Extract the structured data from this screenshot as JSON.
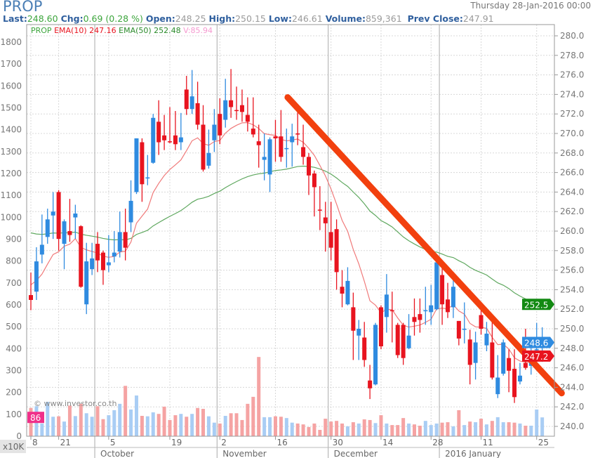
{
  "header": {
    "symbol": "PROP",
    "datetime": "Thursday 28-Jan-2016 00:00",
    "last_label": "Last:",
    "last": "248.60",
    "chg_label": "Chg:",
    "chg": "0.69 (0.28 %)",
    "open_label": "Open:",
    "open": "248.25",
    "high_label": "High:",
    "high": "250.15",
    "low_label": "Low:",
    "low": "246.61",
    "volume_label": "Volume:",
    "volume": "859,361",
    "prev_close_label": "Prev Close:",
    "prev_close": "247.91"
  },
  "legend": {
    "symbol": "PROP",
    "ema10": "EMA(10) 247.16",
    "ema50": "EMA(50) 252.48",
    "volume": "V:85.94"
  },
  "watermark": "© www.investor.co.th",
  "volume_unit": "x10K",
  "colors": {
    "up": "#2f8be0",
    "down": "#e8141f",
    "vol_up": "#a9cdf4",
    "vol_down": "#f5a3a3",
    "ema10": "#f07a7a",
    "ema50": "#5fa85f",
    "trendline": "#f2400e",
    "tag_pink": "#f0308a"
  },
  "chart_data": {
    "type": "candlestick",
    "price_axis": {
      "side": "right",
      "range": [
        240,
        280
      ],
      "step": 2,
      "ticks": [
        "240.0",
        "242.0",
        "244.0",
        "246.0",
        "248.0",
        "250.0",
        "252.0",
        "254.0",
        "256.0",
        "258.0",
        "260.0",
        "262.0",
        "264.0",
        "266.0",
        "268.0",
        "270.0",
        "272.0",
        "274.0",
        "276.0",
        "278.0",
        "280.0"
      ]
    },
    "volume_axis": {
      "side": "left",
      "range": [
        0,
        1800
      ],
      "ticks": [
        "0",
        "100",
        "200",
        "300",
        "400",
        "500",
        "600",
        "700",
        "800",
        "900",
        "1000",
        "1100",
        "1200",
        "1300",
        "1400",
        "1500",
        "1600",
        "1700",
        "1800"
      ]
    },
    "x_ticks": [
      {
        "bar": 0,
        "label": "8"
      },
      {
        "bar": 5,
        "label": "21"
      },
      {
        "bar": 14,
        "label": "5"
      },
      {
        "bar": 25,
        "label": "19"
      },
      {
        "bar": 34,
        "label": "2"
      },
      {
        "bar": 44,
        "label": "16"
      },
      {
        "bar": 54,
        "label": "30"
      },
      {
        "bar": 63,
        "label": "14"
      },
      {
        "bar": 72,
        "label": "28"
      },
      {
        "bar": 81,
        "label": "11"
      },
      {
        "bar": 91,
        "label": "25"
      }
    ],
    "months": [
      {
        "bar": 12,
        "label": "October"
      },
      {
        "bar": 34,
        "label": "November"
      },
      {
        "bar": 54,
        "label": "December"
      },
      {
        "bar": 74,
        "label": "2016 January"
      }
    ],
    "ohlc": [
      [
        253.45,
        255.75,
        251.9,
        252.95
      ],
      [
        253.8,
        258.35,
        252.95,
        256.9
      ],
      [
        257.6,
        261.7,
        256.7,
        258.6
      ],
      [
        259.4,
        262.3,
        258.7,
        261.2
      ],
      [
        261.6,
        264.0,
        259.2,
        262.0
      ],
      [
        264.0,
        264.2,
        258.0,
        259.2
      ],
      [
        258.7,
        261.2,
        256.1,
        261.0
      ],
      [
        260.0,
        263.3,
        258.9,
        259.6
      ],
      [
        261.4,
        262.7,
        259.2,
        261.8
      ],
      [
        260.5,
        260.6,
        254.2,
        254.3
      ],
      [
        252.5,
        258.8,
        251.5,
        256.9
      ],
      [
        256.1,
        258.8,
        255.5,
        257.2
      ],
      [
        258.7,
        259.9,
        255.8,
        257.0
      ],
      [
        257.8,
        258.0,
        254.5,
        256.0
      ],
      [
        256.5,
        259.6,
        255.8,
        256.8
      ],
      [
        257.4,
        260.0,
        256.8,
        257.8
      ],
      [
        257.9,
        262.0,
        257.3,
        259.9
      ],
      [
        259.9,
        262.3,
        257.0,
        258.3
      ],
      [
        260.9,
        265.2,
        259.9,
        263.1
      ],
      [
        264.0,
        269.5,
        263.8,
        269.5
      ],
      [
        269.1,
        269.5,
        263.0,
        264.8
      ],
      [
        265.4,
        267.8,
        264.7,
        265.5
      ],
      [
        267.0,
        272.0,
        266.9,
        271.6
      ],
      [
        271.2,
        273.4,
        267.8,
        269.1
      ],
      [
        269.8,
        271.9,
        268.3,
        269.3
      ],
      [
        269.2,
        272.7,
        269.0,
        269.1
      ],
      [
        269.8,
        272.3,
        268.3,
        268.9
      ],
      [
        269.1,
        272.1,
        268.3,
        269.6
      ],
      [
        274.5,
        275.9,
        271.9,
        272.5
      ],
      [
        272.5,
        276.5,
        272.0,
        273.8
      ],
      [
        273.1,
        275.3,
        270.4,
        270.9
      ],
      [
        270.9,
        272.9,
        266.1,
        266.3
      ],
      [
        266.7,
        270.4,
        266.4,
        268.0
      ],
      [
        269.3,
        272.5,
        268.1,
        270.9
      ],
      [
        272.0,
        273.6,
        268.9,
        269.8
      ],
      [
        271.4,
        275.6,
        270.6,
        273.4
      ],
      [
        273.4,
        276.6,
        271.6,
        272.7
      ],
      [
        272.4,
        274.8,
        271.4,
        272.3
      ],
      [
        272.9,
        274.5,
        271.2,
        272.2
      ],
      [
        271.9,
        273.7,
        270.2,
        271.2
      ],
      [
        270.5,
        273.7,
        269.6,
        269.9
      ],
      [
        269.2,
        270.9,
        266.5,
        268.8
      ],
      [
        267.3,
        270.0,
        265.2,
        267.6
      ],
      [
        265.8,
        269.6,
        264.0,
        269.4
      ],
      [
        269.7,
        271.4,
        267.1,
        269.5
      ],
      [
        269.7,
        272.4,
        267.1,
        267.6
      ],
      [
        268.4,
        270.5,
        266.5,
        268.5
      ],
      [
        269.1,
        271.0,
        266.6,
        269.7
      ],
      [
        270.0,
        273.0,
        268.8,
        269.9
      ],
      [
        268.6,
        270.9,
        266.8,
        267.6
      ],
      [
        267.6,
        268.0,
        263.7,
        265.7
      ],
      [
        265.9,
        266.2,
        261.5,
        264.5
      ],
      [
        262.2,
        264.6,
        260.1,
        262.1
      ],
      [
        261.4,
        263.0,
        257.9,
        260.8
      ],
      [
        259.9,
        263.0,
        257.0,
        258.3
      ],
      [
        260.2,
        261.2,
        254.0,
        255.8
      ],
      [
        254.3,
        256.0,
        252.2,
        253.6
      ],
      [
        252.5,
        256.3,
        252.4,
        254.9
      ],
      [
        252.2,
        253.7,
        246.8,
        249.8
      ],
      [
        249.3,
        250.9,
        246.8,
        250.0
      ],
      [
        249.1,
        250.7,
        246.1,
        246.8
      ],
      [
        244.7,
        246.3,
        242.8,
        243.9
      ],
      [
        244.3,
        250.6,
        244.2,
        250.4
      ],
      [
        252.2,
        252.4,
        247.9,
        248.2
      ],
      [
        251.2,
        255.6,
        249.6,
        253.5
      ],
      [
        251.9,
        253.8,
        248.6,
        251.8
      ],
      [
        250.4,
        250.6,
        247.0,
        247.3
      ],
      [
        250.4,
        250.6,
        246.3,
        247.0
      ],
      [
        248.0,
        251.5,
        247.9,
        249.3
      ],
      [
        251.2,
        253.1,
        249.3,
        250.7
      ],
      [
        251.5,
        253.1,
        249.6,
        250.9
      ],
      [
        251.8,
        254.3,
        250.4,
        251.9
      ],
      [
        251.7,
        254.5,
        250.4,
        252.4
      ],
      [
        252.0,
        257.0,
        251.9,
        256.8
      ],
      [
        255.5,
        256.5,
        250.4,
        252.5
      ],
      [
        253.0,
        254.7,
        251.1,
        251.7
      ],
      [
        252.2,
        255.6,
        251.1,
        254.3
      ],
      [
        250.8,
        250.8,
        248.3,
        249.0
      ],
      [
        249.9,
        252.7,
        248.5,
        250.0
      ],
      [
        248.9,
        249.9,
        244.3,
        246.3
      ],
      [
        246.5,
        249.7,
        244.8,
        248.6
      ],
      [
        251.4,
        252.2,
        249.4,
        250.0
      ],
      [
        248.3,
        250.7,
        247.7,
        249.5
      ],
      [
        248.6,
        251.1,
        244.8,
        245.0
      ],
      [
        243.3,
        247.3,
        242.9,
        245.0
      ],
      [
        245.4,
        248.9,
        245.2,
        248.6
      ],
      [
        247.0,
        247.9,
        243.5,
        245.7
      ],
      [
        245.9,
        247.9,
        242.4,
        243.0
      ],
      [
        244.6,
        246.5,
        244.3,
        245.2
      ],
      [
        246.5,
        250.0,
        245.8,
        246.0
      ],
      [
        246.2,
        248.8,
        245.3,
        246.6
      ],
      [
        247.8,
        250.6,
        246.5,
        247.9
      ],
      [
        248.25,
        250.15,
        246.61,
        248.6
      ]
    ],
    "volume": [
      129,
      137,
      58,
      157,
      89,
      91,
      67,
      140,
      92,
      148,
      105,
      89,
      137,
      78,
      96,
      119,
      148,
      230,
      122,
      186,
      93,
      91,
      109,
      102,
      135,
      74,
      96,
      102,
      89,
      102,
      129,
      125,
      91,
      62,
      58,
      93,
      105,
      105,
      74,
      148,
      180,
      362,
      87,
      87,
      91,
      89,
      83,
      62,
      58,
      54,
      42,
      58,
      29,
      80,
      67,
      70,
      58,
      45,
      64,
      58,
      77,
      74,
      60,
      96,
      58,
      51,
      51,
      83,
      58,
      54,
      48,
      70,
      51,
      58,
      62,
      64,
      45,
      119,
      51,
      67,
      64,
      80,
      54,
      70,
      87,
      64,
      64,
      62,
      58,
      48,
      48,
      122,
      86
    ],
    "ema10_seed": 254.5,
    "ema50_seed": 260.1,
    "trendline": {
      "from": {
        "bar": 46.2,
        "price": 273.7
      },
      "to": {
        "bar": 95.5,
        "price": 243.4
      }
    },
    "price_tags": [
      {
        "label": "252.5",
        "price": 252.5,
        "color": "#138a13"
      },
      {
        "label": "248.6",
        "price": 248.6,
        "color": "#2f8be0"
      },
      {
        "label": "247.2",
        "price": 247.2,
        "color": "#e8141f"
      }
    ],
    "volume_tag": {
      "label": "86",
      "value": 86
    }
  }
}
